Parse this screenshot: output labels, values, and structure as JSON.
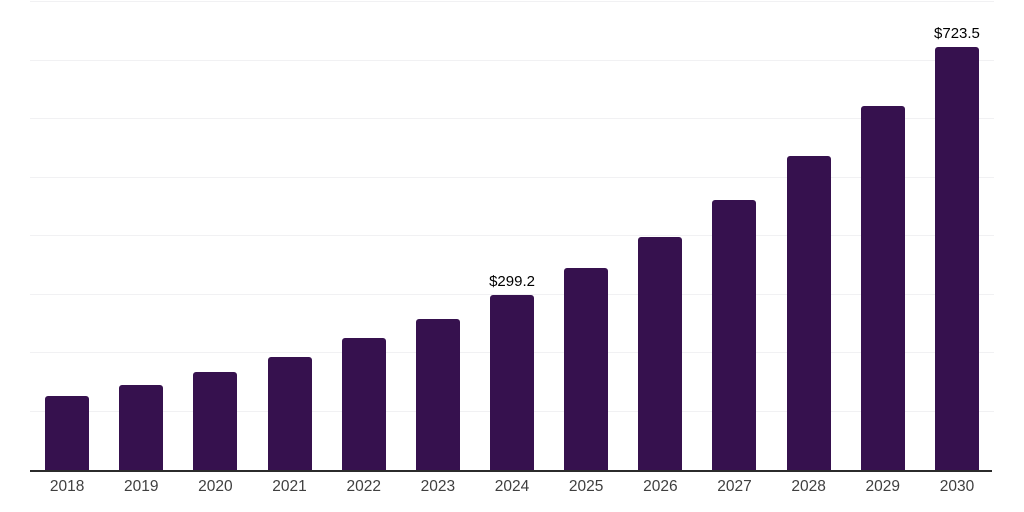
{
  "chart_data": {
    "type": "bar",
    "title": "",
    "xlabel": "",
    "ylabel": "",
    "categories": [
      "2018",
      "2019",
      "2020",
      "2021",
      "2022",
      "2023",
      "2024",
      "2025",
      "2026",
      "2027",
      "2028",
      "2029",
      "2030"
    ],
    "values": [
      127,
      146,
      168,
      194,
      225,
      258,
      299.2,
      345,
      398,
      462,
      537,
      622,
      723.5
    ],
    "bar_labels": [
      "",
      "",
      "",
      "",
      "",
      "",
      "$299.2",
      "",
      "",
      "",
      "",
      "",
      "$723.5"
    ],
    "value_prefix": "$",
    "ylim": [
      0,
      800
    ],
    "gridline_step": 100,
    "grid": true,
    "legend_position": "none",
    "colors": {
      "bar": "#36114E",
      "gridline": "#f1f1f3",
      "axis_line": "#2b2b2b",
      "data_label": "#000000",
      "tick_label": "#3f3f3f",
      "background": "#ffffff"
    }
  }
}
